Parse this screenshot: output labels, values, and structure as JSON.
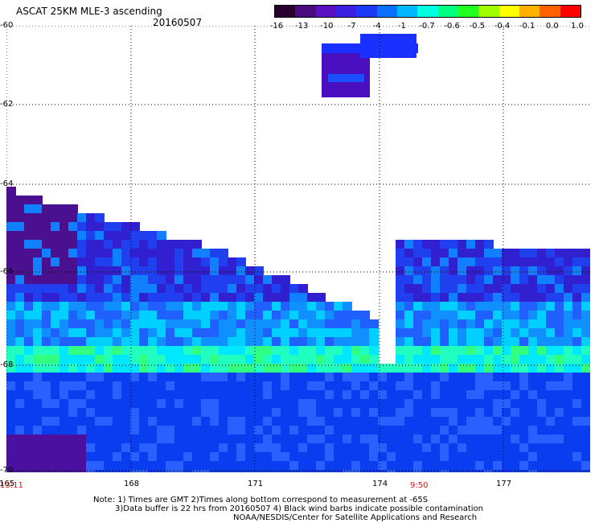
{
  "header": {
    "title": "ASCAT 25KM MLE-3 ascending",
    "date": "20160507"
  },
  "colorbar": {
    "labels": [
      "-16",
      "-13",
      "-10",
      "-7",
      "-4",
      "-1",
      "-0.7",
      "-0.6",
      "-0.5",
      "-0.4",
      "-0.1",
      "0.0",
      "1.0"
    ],
    "colors": [
      "#2a0030",
      "#4a0a80",
      "#5a10c0",
      "#3a20e0",
      "#1a3af8",
      "#0a70ff",
      "#00b8ff",
      "#00ffe0",
      "#00ff80",
      "#20ff20",
      "#a0ff00",
      "#ffff00",
      "#ffb000",
      "#ff6000",
      "#ff0000"
    ]
  },
  "axes": {
    "lon_ticks": [
      "165",
      "168",
      "171",
      "174",
      "177"
    ],
    "lat_ticks": [
      "60",
      "62",
      "64",
      "66",
      "68",
      "70"
    ],
    "left_time": "13:11",
    "right_time": "9:50"
  },
  "notes": {
    "line1": "Note: 1) Times are GMT 2)Times along bottom correspond to measurement at -65S",
    "line2": "3)Data buffer is 22 hrs from 20160507 4) Black wind barbs indicate possible contamination",
    "line3": "NOAA/NESDIS/Center for Satellite Applications and Research"
  }
}
